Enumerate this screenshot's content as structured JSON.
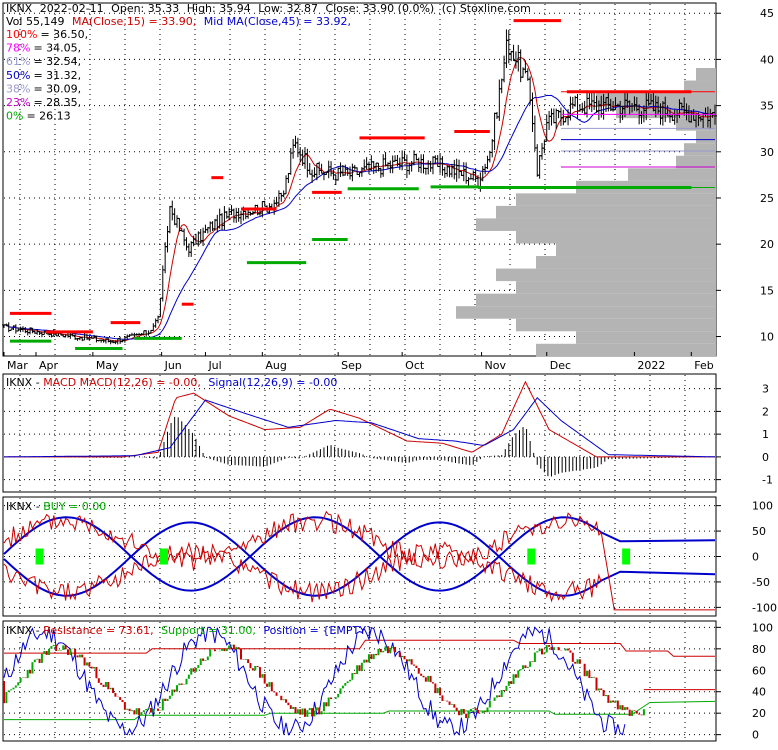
{
  "chart_data": [
    {
      "type": "candlestick",
      "header": {
        "ticker": "IKNX",
        "date": "2022-02-11",
        "open": "Open: 35.33",
        "high": "High: 35.94",
        "low": "Low: 32.87",
        "close": "Close: 33.90 (0.0%)",
        "source": "(c) Stoxline.com",
        "volume": "Vol 55,149",
        "ma15": "MA(Close,15) = 33.90,",
        "ma45": "Mid MA(Close,45) = 33.92,"
      },
      "fib_levels": [
        {
          "pct": "100%",
          "value": "= 36.50,",
          "level": 36.5,
          "color": "#ff0000"
        },
        {
          "pct": "78%",
          "value": "= 34.05,",
          "level": 34.05,
          "color": "#ff00ff"
        },
        {
          "pct": "61%",
          "value": "= 32.54,",
          "level": 32.54,
          "color": "#9999cc"
        },
        {
          "pct": "50%",
          "value": "= 31.32,",
          "level": 31.32,
          "color": "#0000cc"
        },
        {
          "pct": "38%",
          "value": "= 30.09,",
          "level": 30.09,
          "color": "#9999cc"
        },
        {
          "pct": "23%",
          "value": "= 28.35,",
          "level": 28.35,
          "color": "#cc00cc"
        },
        {
          "pct": "0%",
          "value": "= 26.13",
          "level": 26.13,
          "color": "#00aa00"
        }
      ],
      "y_ticks": [
        "45",
        "40",
        "35",
        "30",
        "25",
        "20",
        "15",
        "10"
      ],
      "y_tick_values": [
        45,
        40,
        35,
        30,
        25,
        20,
        15,
        10
      ],
      "ylim": [
        8,
        46
      ],
      "x_labels": [
        "Mar",
        "Apr",
        "May",
        "Jun",
        "Jul",
        "Aug",
        "Sep",
        "Oct",
        "Nov",
        "Dec",
        "2022",
        "Feb"
      ],
      "x_label_days": [
        0,
        27,
        75,
        133,
        170,
        218,
        282,
        336,
        403,
        458,
        532,
        580
      ],
      "key_points": {
        "days": [
          0,
          30,
          60,
          90,
          110,
          122,
          130,
          140,
          155,
          175,
          195,
          220,
          235,
          245,
          260,
          290,
          320,
          350,
          380,
          400,
          410,
          425,
          440,
          445,
          450,
          458,
          470,
          480,
          500,
          530,
          560,
          600
        ],
        "close": [
          11,
          10.5,
          10,
          9.5,
          10,
          10.5,
          12,
          24,
          19.5,
          22,
          23.5,
          24,
          25,
          31,
          28,
          27.5,
          28.5,
          29,
          28,
          27,
          30,
          42,
          38,
          35,
          28,
          33,
          34,
          35,
          35,
          35,
          34.5,
          34
        ]
      },
      "support_resistance": [
        {
          "type": "resistance",
          "from": 5,
          "to": 40,
          "y": 12.5
        },
        {
          "type": "resistance",
          "from": 35,
          "to": 75,
          "y": 10.5
        },
        {
          "type": "resistance",
          "from": 90,
          "to": 115,
          "y": 11.5
        },
        {
          "type": "resistance",
          "from": 150,
          "to": 160,
          "y": 13.5
        },
        {
          "type": "resistance",
          "from": 175,
          "to": 185,
          "y": 27.2
        },
        {
          "type": "resistance",
          "from": 200,
          "to": 230,
          "y": 23.8
        },
        {
          "type": "resistance",
          "from": 260,
          "to": 285,
          "y": 25.6
        },
        {
          "type": "resistance",
          "from": 300,
          "to": 355,
          "y": 31.5
        },
        {
          "type": "resistance",
          "from": 380,
          "to": 410,
          "y": 32.2
        },
        {
          "type": "resistance",
          "from": 430,
          "to": 470,
          "y": 44.2
        },
        {
          "type": "resistance",
          "from": 475,
          "to": 580,
          "y": 36.5
        },
        {
          "type": "support",
          "from": 5,
          "to": 40,
          "y": 9.5
        },
        {
          "type": "support",
          "from": 60,
          "to": 100,
          "y": 8.7
        },
        {
          "type": "support",
          "from": 110,
          "to": 150,
          "y": 9.8
        },
        {
          "type": "support",
          "from": 205,
          "to": 255,
          "y": 18
        },
        {
          "type": "support",
          "from": 260,
          "to": 290,
          "y": 20.5
        },
        {
          "type": "support",
          "from": 290,
          "to": 350,
          "y": 26
        },
        {
          "type": "support",
          "from": 360,
          "to": 400,
          "y": 26.2
        },
        {
          "type": "support",
          "from": 400,
          "to": 580,
          "y": 26.13
        }
      ],
      "volume_profile": [
        0.05,
        0.08,
        0.3,
        0.25,
        0.1,
        0.05,
        0.08,
        0.1,
        0.22,
        0.35,
        0.5,
        0.55,
        0.6,
        0.5,
        0.4,
        0.45,
        0.55,
        0.5,
        0.6,
        0.65,
        0.5,
        0.35,
        0.45,
        0.3,
        0.1,
        0.05,
        0.05,
        0.05
      ]
    },
    {
      "type": "line",
      "label": "IKNX - ",
      "title": "MACD",
      "series_labels": [
        "MACD(12,26) = -0.00,",
        "Signal(12,26,9) = -0.00"
      ],
      "series_colors": [
        "#cc0000",
        "#0000cc"
      ],
      "y_ticks": [
        "3",
        "2",
        "1",
        "0",
        "-1"
      ],
      "y_tick_values": [
        3,
        2,
        1,
        0,
        -1
      ],
      "ylim": [
        -1.5,
        3.6
      ]
    },
    {
      "type": "line",
      "label": "IKNX - ",
      "title": "BUY = 0.00",
      "y_ticks": [
        "100",
        "50",
        "0",
        "-50",
        "-100"
      ],
      "y_tick_values": [
        100,
        50,
        0,
        -50,
        -100
      ],
      "ylim": [
        -115,
        115
      ],
      "buy_markers": [
        30,
        135,
        445,
        525
      ]
    },
    {
      "type": "line",
      "label": "IKNX - ",
      "series_labels": [
        "Resistance = 73.61,",
        "Support = 31.00,",
        "Position = {EMPTY}"
      ],
      "series_colors": [
        "#cc0000",
        "#00aa00",
        "#0000cc"
      ],
      "y_ticks": [
        "100",
        "80",
        "60",
        "40",
        "20",
        "0"
      ],
      "y_tick_values": [
        100,
        80,
        60,
        40,
        20,
        0
      ],
      "ylim": [
        -5,
        105
      ]
    }
  ]
}
